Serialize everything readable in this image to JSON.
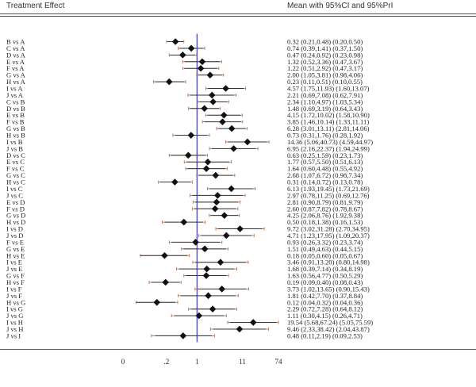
{
  "header": {
    "left": "Treatment Effect",
    "right": "Mean with 95%CI and 95%PrI"
  },
  "chart_data": {
    "type": "forest",
    "x_scale": "log",
    "xlim": [
      0.02,
      74
    ],
    "reference_line": 1,
    "x_ticks": [
      {
        "value": 0.02,
        "label": "0"
      },
      {
        "value": 0.2,
        "label": ".2"
      },
      {
        "value": 1,
        "label": "1"
      },
      {
        "value": 11,
        "label": "11"
      },
      {
        "value": 74,
        "label": "74"
      }
    ],
    "rows": [
      {
        "label": "B vs A",
        "mean": 0.32,
        "ci": [
          0.21,
          0.48
        ],
        "pri": [
          0.2,
          0.5
        ],
        "text": "0.32 (0.21,0.48) (0.20,0.50)"
      },
      {
        "label": "C vs A",
        "mean": 0.74,
        "ci": [
          0.39,
          1.41
        ],
        "pri": [
          0.37,
          1.5
        ],
        "text": "0.74 (0.39,1.41) (0.37,1.50)"
      },
      {
        "label": "D vs A",
        "mean": 0.47,
        "ci": [
          0.24,
          0.92
        ],
        "pri": [
          0.23,
          0.98
        ],
        "text": "0.47 (0.24,0.92) (0.23,0.98)"
      },
      {
        "label": "E vs A",
        "mean": 1.32,
        "ci": [
          0.52,
          3.36
        ],
        "pri": [
          0.47,
          3.67
        ],
        "text": "1.32 (0.52,3.36) (0.47,3.67)"
      },
      {
        "label": "F vs A",
        "mean": 1.22,
        "ci": [
          0.51,
          2.92
        ],
        "pri": [
          0.47,
          3.17
        ],
        "text": "1.22 (0.51,2.92) (0.47,3.17)"
      },
      {
        "label": "G vs A",
        "mean": 2.0,
        "ci": [
          1.05,
          3.81
        ],
        "pri": [
          0.98,
          4.06
        ],
        "text": "2.00 (1.05,3.81) (0.98,4.06)"
      },
      {
        "label": "H vs A",
        "mean": 0.23,
        "ci": [
          0.11,
          0.51
        ],
        "pri": [
          0.1,
          0.55
        ],
        "text": "0.23 (0.11,0.51) (0.10,0.55)"
      },
      {
        "label": "I vs A",
        "mean": 4.57,
        "ci": [
          1.75,
          11.93
        ],
        "pri": [
          1.6,
          13.07
        ],
        "text": "4.57 (1.75,11.93) (1.60,13.07)"
      },
      {
        "label": "J vs A",
        "mean": 2.21,
        "ci": [
          0.69,
          7.08
        ],
        "pri": [
          0.62,
          7.91
        ],
        "text": "2.21 (0.69,7.08) (0.62,7.91)"
      },
      {
        "label": "C vs B",
        "mean": 2.34,
        "ci": [
          1.1,
          4.97
        ],
        "pri": [
          1.03,
          5.34
        ],
        "text": "2.34 (1.10,4.97) (1.03,5.34)"
      },
      {
        "label": "D vs B",
        "mean": 1.48,
        "ci": [
          0.69,
          3.19
        ],
        "pri": [
          0.64,
          3.43
        ],
        "text": "1.48 (0.69,3.19) (0.64,3.43)"
      },
      {
        "label": "E vs B",
        "mean": 4.15,
        "ci": [
          1.72,
          10.02
        ],
        "pri": [
          1.58,
          10.9
        ],
        "text": "4.15 (1.72,10.02) (1.58,10.90)"
      },
      {
        "label": "F vs B",
        "mean": 3.85,
        "ci": [
          1.46,
          10.14
        ],
        "pri": [
          1.33,
          11.11
        ],
        "text": "3.85 (1.46,10.14) (1.33,11.11)"
      },
      {
        "label": "G vs B",
        "mean": 6.28,
        "ci": [
          3.01,
          13.11
        ],
        "pri": [
          2.81,
          14.06
        ],
        "text": "6.28 (3.01,13.11) (2.81,14.06)"
      },
      {
        "label": "H vs B",
        "mean": 0.73,
        "ci": [
          0.31,
          1.76
        ],
        "pri": [
          0.28,
          1.92
        ],
        "text": "0.73 (0.31,1.76) (0.28,1.92)"
      },
      {
        "label": "I vs B",
        "mean": 14.36,
        "ci": [
          5.06,
          40.73
        ],
        "pri": [
          4.59,
          44.97
        ],
        "text": "14.36 (5.06,40.73) (4.59,44.97)"
      },
      {
        "label": "J vs B",
        "mean": 6.95,
        "ci": [
          2.16,
          22.37
        ],
        "pri": [
          1.94,
          24.99
        ],
        "text": "6.95 (2.16,22.37) (1.94,24.99)"
      },
      {
        "label": "D vs C",
        "mean": 0.63,
        "ci": [
          0.25,
          1.59
        ],
        "pri": [
          0.23,
          1.73
        ],
        "text": "0.63 (0.25,1.59) (0.23,1.73)"
      },
      {
        "label": "E vs C",
        "mean": 1.77,
        "ci": [
          0.57,
          5.5
        ],
        "pri": [
          0.51,
          6.13
        ],
        "text": "1.77 (0.57,5.50) (0.51,6.13)"
      },
      {
        "label": "F vs C",
        "mean": 1.64,
        "ci": [
          0.6,
          4.48
        ],
        "pri": [
          0.55,
          4.92
        ],
        "text": "1.64 (0.60,4.48) (0.55,4.92)"
      },
      {
        "label": "G vs C",
        "mean": 2.68,
        "ci": [
          1.07,
          6.72
        ],
        "pri": [
          0.98,
          7.34
        ],
        "text": "2.68 (1.07,6.72) (0.98,7.34)"
      },
      {
        "label": "H vs C",
        "mean": 0.31,
        "ci": [
          0.14,
          0.72
        ],
        "pri": [
          0.13,
          0.78
        ],
        "text": "0.31 (0.14,0.72) (0.13,0.78)"
      },
      {
        "label": "I vs C",
        "mean": 6.13,
        "ci": [
          1.93,
          19.45
        ],
        "pri": [
          1.73,
          21.69
        ],
        "text": "6.13 (1.93,19.45) (1.73,21.69)"
      },
      {
        "label": "J vs C",
        "mean": 2.97,
        "ci": [
          0.78,
          11.25
        ],
        "pri": [
          0.69,
          12.76
        ],
        "text": "2.97 (0.78,11.25) (0.69,12.76)"
      },
      {
        "label": "E vs D",
        "mean": 2.81,
        "ci": [
          0.9,
          8.79
        ],
        "pri": [
          0.81,
          9.79
        ],
        "text": "2.81 (0.90,8.79) (0.81,9.79)"
      },
      {
        "label": "F vs D",
        "mean": 2.6,
        "ci": [
          0.87,
          7.82
        ],
        "pri": [
          0.78,
          8.67
        ],
        "text": "2.60 (0.87,7.82) (0.78,8.67)"
      },
      {
        "label": "G vs D",
        "mean": 4.25,
        "ci": [
          2.06,
          8.76
        ],
        "pri": [
          1.92,
          9.38
        ],
        "text": "4.25 (2.06,8.76) (1.92,9.38)"
      },
      {
        "label": "H vs D",
        "mean": 0.5,
        "ci": [
          0.18,
          1.38
        ],
        "pri": [
          0.16,
          1.53
        ],
        "text": "0.50 (0.18,1.38) (0.16,1.53)"
      },
      {
        "label": "I vs D",
        "mean": 9.72,
        "ci": [
          3.02,
          31.28
        ],
        "pri": [
          2.7,
          34.95
        ],
        "text": "9.72 (3.02,31.28) (2.70,34.95)"
      },
      {
        "label": "J vs D",
        "mean": 4.71,
        "ci": [
          1.23,
          17.95
        ],
        "pri": [
          1.09,
          20.37
        ],
        "text": "4.71 (1.23,17.95) (1.09,20.37)"
      },
      {
        "label": "F vs E",
        "mean": 0.93,
        "ci": [
          0.26,
          3.32
        ],
        "pri": [
          0.23,
          3.74
        ],
        "text": "0.93 (0.26,3.32) (0.23,3.74)"
      },
      {
        "label": "G vs E",
        "mean": 1.51,
        "ci": [
          0.49,
          4.63
        ],
        "pri": [
          0.44,
          5.15
        ],
        "text": "1.51 (0.49,4.63) (0.44,5.15)"
      },
      {
        "label": "H vs E",
        "mean": 0.18,
        "ci": [
          0.05,
          0.6
        ],
        "pri": [
          0.05,
          0.67
        ],
        "text": "0.18 (0.05,0.60) (0.05,0.67)"
      },
      {
        "label": "I vs E",
        "mean": 3.46,
        "ci": [
          0.91,
          13.2
        ],
        "pri": [
          0.8,
          14.98
        ],
        "text": "3.46 (0.91,13.20) (0.80,14.98)"
      },
      {
        "label": "J vs E",
        "mean": 1.68,
        "ci": [
          0.39,
          7.14
        ],
        "pri": [
          0.34,
          8.19
        ],
        "text": "1.68 (0.39,7.14) (0.34,8.19)"
      },
      {
        "label": "G vs F",
        "mean": 1.63,
        "ci": [
          0.56,
          4.77
        ],
        "pri": [
          0.5,
          5.29
        ],
        "text": "1.63 (0.56,4.77) (0.50,5.29)"
      },
      {
        "label": "H vs F",
        "mean": 0.19,
        "ci": [
          0.09,
          0.4
        ],
        "pri": [
          0.08,
          0.43
        ],
        "text": "0.19 (0.09,0.40) (0.08,0.43)"
      },
      {
        "label": "I vs F",
        "mean": 3.73,
        "ci": [
          1.02,
          13.65
        ],
        "pri": [
          0.9,
          15.43
        ],
        "text": "3.73 (1.02,13.65) (0.90,15.43)"
      },
      {
        "label": "J vs F",
        "mean": 1.81,
        "ci": [
          0.42,
          7.7
        ],
        "pri": [
          0.37,
          8.84
        ],
        "text": "1.81 (0.42,7.70) (0.37,8.84)"
      },
      {
        "label": "H vs G",
        "mean": 0.12,
        "ci": [
          0.04,
          0.32
        ],
        "pri": [
          0.04,
          0.36
        ],
        "text": "0.12 (0.04,0.32) (0.04,0.36)"
      },
      {
        "label": "I vs G",
        "mean": 2.29,
        "ci": [
          0.72,
          7.28
        ],
        "pri": [
          0.64,
          8.12
        ],
        "text": "2.29 (0.72,7.28) (0.64,8.12)"
      },
      {
        "label": "J vs G",
        "mean": 1.11,
        "ci": [
          0.3,
          4.15
        ],
        "pri": [
          0.26,
          4.71
        ],
        "text": "1.11 (0.30,4.15) (0.26,4.71)"
      },
      {
        "label": "I vs H",
        "mean": 19.54,
        "ci": [
          5.68,
          67.24
        ],
        "pri": [
          5.05,
          75.59
        ],
        "text": "19.54 (5.68,67.24) (5.05,75.59)"
      },
      {
        "label": "J vs H",
        "mean": 9.46,
        "ci": [
          2.33,
          38.42
        ],
        "pri": [
          2.04,
          43.87
        ],
        "text": "9.46 (2.33,38.42) (2.04,43.87)"
      },
      {
        "label": "J vs I",
        "mean": 0.48,
        "ci": [
          0.11,
          2.19
        ],
        "pri": [
          0.09,
          2.53
        ],
        "text": "0.48 (0.11,2.19) (0.09,2.53)"
      }
    ],
    "colors": {
      "reference_line": "#3b3bbf",
      "pri_whisker": "#b07050",
      "ci_line": "#333333",
      "marker": "#111111"
    }
  }
}
